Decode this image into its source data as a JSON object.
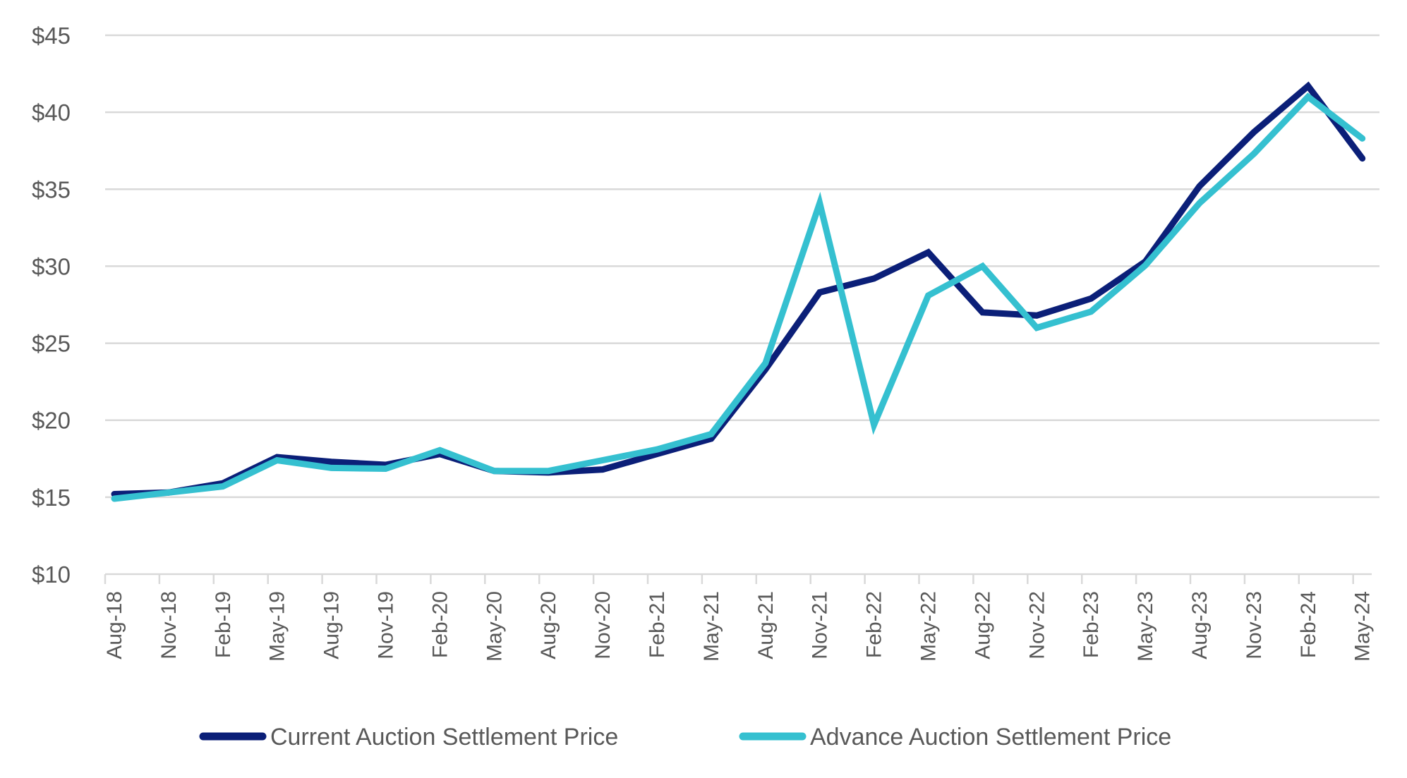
{
  "chart_data": {
    "type": "line",
    "title": "",
    "xlabel": "",
    "ylabel": "",
    "ylim": [
      10,
      45
    ],
    "y_ticks": [
      10,
      15,
      20,
      25,
      30,
      35,
      40,
      45
    ],
    "y_tick_labels": [
      "$10",
      "$15",
      "$20",
      "$25",
      "$30",
      "$35",
      "$40",
      "$45"
    ],
    "grid": "horizontal",
    "legend_position": "bottom",
    "categories": [
      "Aug-18",
      "Nov-18",
      "Feb-19",
      "May-19",
      "Aug-19",
      "Nov-19",
      "Feb-20",
      "May-20",
      "Aug-20",
      "Nov-20",
      "Feb-21",
      "May-21",
      "Aug-21",
      "Nov-21",
      "Feb-22",
      "May-22",
      "Aug-22",
      "Nov-22",
      "Feb-23",
      "May-23",
      "Aug-23",
      "Nov-23",
      "Feb-24",
      "May-24"
    ],
    "series": [
      {
        "name": "Current Auction Settlement Price",
        "color": "#0b1f78",
        "values": [
          15.2,
          15.3,
          15.9,
          17.6,
          17.3,
          17.1,
          17.8,
          16.7,
          16.6,
          16.8,
          17.8,
          18.8,
          23.3,
          28.3,
          29.2,
          30.9,
          27.0,
          26.8,
          27.9,
          30.3,
          35.2,
          38.7,
          41.7,
          37.0
        ]
      },
      {
        "name": "Advance Auction Settlement Price",
        "color": "#35c0d0",
        "values": [
          14.9,
          15.3,
          15.7,
          17.4,
          16.9,
          16.85,
          18.05,
          16.7,
          16.7,
          17.4,
          18.1,
          19.1,
          23.7,
          34.1,
          19.7,
          28.1,
          30.0,
          26.0,
          27.05,
          30.05,
          34.1,
          37.3,
          41.0,
          38.3
        ]
      }
    ]
  },
  "colors": {
    "gridline": "#d9d9d9",
    "axis_text": "#595959"
  }
}
